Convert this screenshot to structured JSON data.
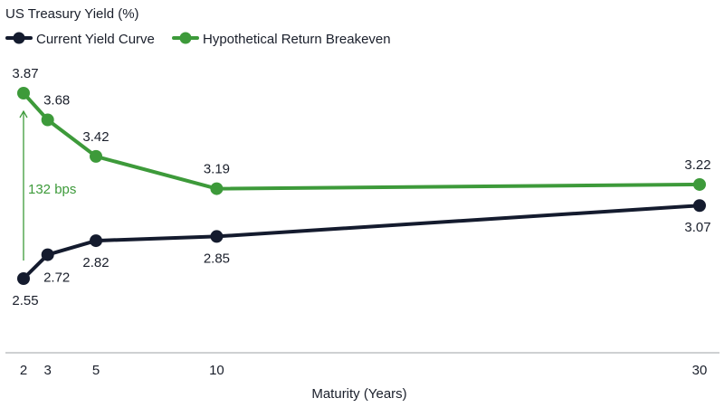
{
  "chart_data": {
    "type": "line",
    "ylabel": "US Treasury Yield (%)",
    "xlabel": "Maturity (Years)",
    "x": [
      2,
      3,
      5,
      10,
      30
    ],
    "x_ticks": [
      "2",
      "3",
      "5",
      "10",
      "30"
    ],
    "ylim": [
      2.0,
      4.0
    ],
    "grid": false,
    "legend": {
      "placement": "top-left"
    },
    "series": [
      {
        "name": "Current Yield Curve",
        "color": "#141b2e",
        "values": [
          2.55,
          2.72,
          2.82,
          2.85,
          3.07
        ],
        "labels": [
          "2.55",
          "2.72",
          "2.82",
          "2.85",
          "3.07"
        ],
        "label_position": "below"
      },
      {
        "name": "Hypothetical Return Breakeven",
        "color": "#3d9a3a",
        "values": [
          3.87,
          3.68,
          3.42,
          3.19,
          3.22
        ],
        "labels": [
          "3.87",
          "3.68",
          "3.42",
          "3.19",
          "3.22"
        ],
        "label_position": "above"
      }
    ],
    "annotation": {
      "text": "132 bps",
      "color": "#3d9a3a",
      "from_value": 2.55,
      "to_value": 3.87,
      "at_x": 2
    }
  }
}
